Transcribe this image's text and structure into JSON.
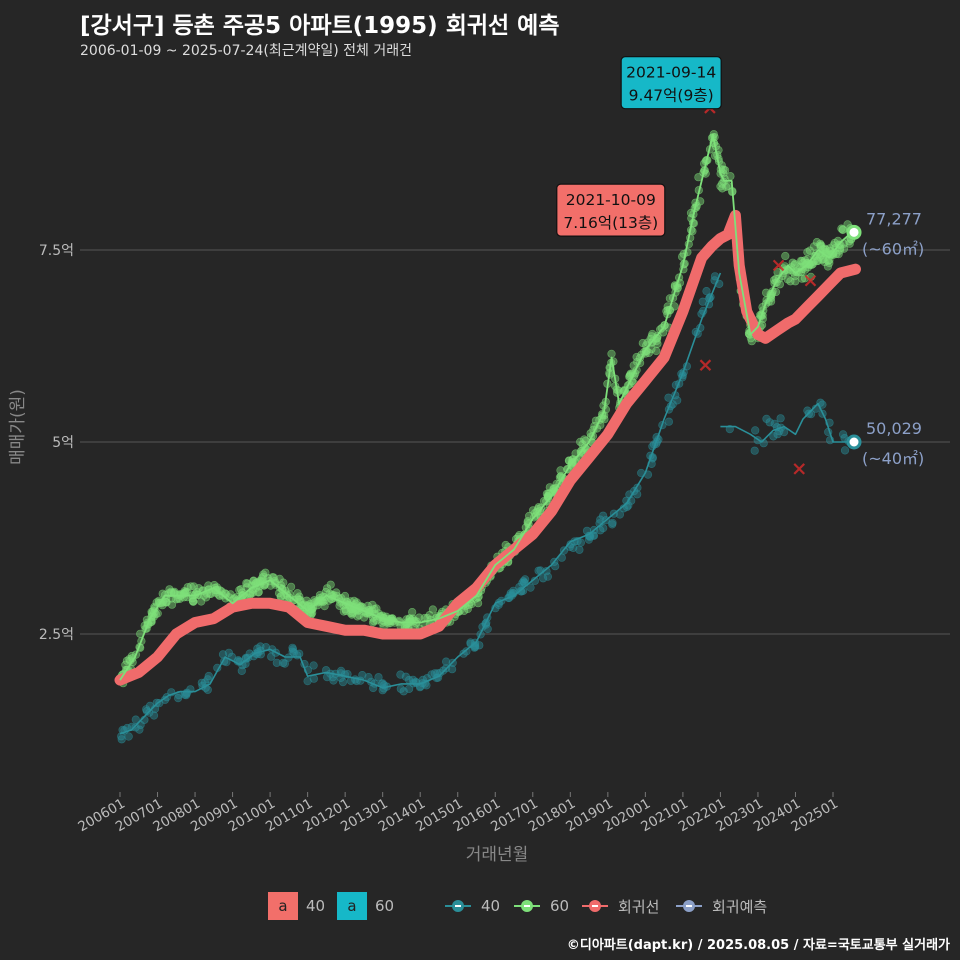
{
  "title": "[강서구] 등촌 주공5 아파트(1995) 회귀선 예측",
  "subtitle": "2006-01-09 ~ 2025-07-24(최근계약일) 전체 거래건",
  "caption": "©디아파트(dapt.kr) / 2025.08.05 / 자료=국토교통부 실거래가",
  "colors": {
    "background": "#262626",
    "grid": "#555555",
    "size40": "#2a8f99",
    "size60": "#7ee07a",
    "regression": "#f06b6b",
    "prediction": "#8ca0c8",
    "label_60": "#16b8c8",
    "label_reg": "#f26f6a",
    "cancel_x": "#d02a2a"
  },
  "legend": {
    "fill_items": [
      {
        "key": "a",
        "label": "40",
        "color": "#f26f6a"
      },
      {
        "key": "a",
        "label": "60",
        "color": "#16b8c8"
      }
    ],
    "line_items": [
      {
        "label": "40",
        "color": "#2a8f99"
      },
      {
        "label": "60",
        "color": "#7ee07a"
      },
      {
        "label": "회귀선",
        "color": "#f06b6b"
      },
      {
        "label": "회귀예측",
        "color": "#8ca0c8"
      }
    ]
  },
  "chart_data": {
    "type": "line",
    "xlabel": "거래년월",
    "ylabel": "매매가(원)",
    "x_unit": "year",
    "x_range": [
      2006.0,
      2025.6
    ],
    "ylim": [
      0.6,
      9.9
    ],
    "y_ticks": [
      {
        "value": 2.5,
        "label": "2.5억"
      },
      {
        "value": 5,
        "label": "5억"
      },
      {
        "value": 7.5,
        "label": "7.5억"
      }
    ],
    "x_ticks": [
      "200601",
      "200701",
      "200801",
      "200901",
      "201001",
      "201101",
      "201201",
      "201301",
      "201401",
      "201501",
      "201601",
      "201701",
      "201801",
      "201901",
      "202001",
      "202101",
      "202201",
      "202301",
      "202401",
      "202501"
    ],
    "grid": true,
    "series": [
      {
        "name": "60",
        "key": "size60",
        "x": [
          2006.0,
          2006.4,
          2006.8,
          2007.2,
          2007.6,
          2008.0,
          2008.5,
          2009.0,
          2009.5,
          2010.0,
          2010.5,
          2011.0,
          2011.5,
          2012.0,
          2012.5,
          2013.0,
          2013.5,
          2014.0,
          2014.5,
          2015.0,
          2015.5,
          2016.0,
          2016.5,
          2017.0,
          2017.5,
          2018.0,
          2018.5,
          2018.9,
          2019.1,
          2019.3,
          2019.6,
          2020.0,
          2020.5,
          2021.0,
          2021.3,
          2021.6,
          2021.8,
          2022.0,
          2022.1,
          2022.3,
          2022.5,
          2022.8,
          2023.0,
          2023.2,
          2023.5,
          2023.8,
          2024.0,
          2024.3,
          2024.6,
          2024.9,
          2025.2,
          2025.5
        ],
        "y": [
          1.9,
          2.2,
          2.7,
          3.0,
          3.0,
          3.0,
          3.1,
          2.9,
          3.1,
          3.2,
          3.0,
          2.8,
          3.0,
          2.9,
          2.8,
          2.7,
          2.65,
          2.65,
          2.7,
          2.8,
          3.0,
          3.4,
          3.6,
          4.0,
          4.3,
          4.7,
          5.0,
          5.4,
          6.1,
          5.5,
          5.8,
          6.2,
          6.5,
          7.3,
          8.0,
          8.6,
          9.0,
          8.5,
          8.4,
          8.4,
          7.2,
          6.4,
          6.5,
          6.8,
          7.1,
          7.3,
          7.2,
          7.3,
          7.5,
          7.4,
          7.6,
          7.73
        ]
      },
      {
        "name": "40",
        "key": "size40",
        "x": [
          2006.0,
          2006.3,
          2006.6,
          2007.0,
          2007.3,
          2007.6,
          2008.0,
          2008.4,
          2008.8,
          2009.2,
          2009.6,
          2010.0,
          2010.4,
          2010.8,
          2011.0,
          2011.5,
          2012.0,
          2012.5,
          2013.0,
          2013.5,
          2014.0,
          2014.5,
          2015.0,
          2015.5,
          2016.0,
          2016.5,
          2017.0,
          2017.5,
          2018.0,
          2018.5,
          2019.0,
          2019.5,
          2020.0,
          2020.5,
          2021.0,
          2021.5,
          2022.0
        ],
        "y": [
          1.2,
          1.25,
          1.4,
          1.6,
          1.7,
          1.75,
          1.75,
          1.85,
          2.2,
          2.1,
          2.25,
          2.3,
          2.2,
          2.2,
          1.95,
          2.0,
          1.95,
          1.9,
          1.8,
          1.85,
          1.85,
          1.95,
          2.2,
          2.4,
          2.9,
          3.0,
          3.2,
          3.4,
          3.7,
          3.8,
          4.0,
          4.2,
          4.6,
          5.3,
          5.9,
          6.6,
          7.2
        ]
      },
      {
        "name": "40",
        "key": "size40",
        "x": [
          2022.0,
          2022.4,
          2022.8,
          2023.1,
          2023.4,
          2023.7,
          2024.0,
          2024.2,
          2024.4,
          2024.6,
          2024.8,
          2025.0,
          2025.2,
          2025.5
        ],
        "y": [
          5.2,
          5.2,
          5.1,
          5.0,
          5.15,
          5.2,
          5.1,
          5.3,
          5.4,
          5.5,
          5.3,
          5.0,
          5.0,
          5.0
        ]
      },
      {
        "name": "회귀선",
        "key": "regression",
        "x": [
          2006.0,
          2006.5,
          2007.0,
          2007.5,
          2008.0,
          2008.5,
          2009.0,
          2009.5,
          2010.0,
          2010.5,
          2011.0,
          2011.5,
          2012.0,
          2012.5,
          2013.0,
          2013.5,
          2014.0,
          2014.5,
          2015.0,
          2015.5,
          2016.0,
          2016.5,
          2017.0,
          2017.5,
          2018.0,
          2018.5,
          2019.0,
          2019.5,
          2020.0,
          2020.5,
          2021.0,
          2021.5,
          2021.77,
          2022.0,
          2022.2,
          2022.4,
          2022.5,
          2022.7,
          2023.0,
          2023.2,
          2023.5,
          2023.8,
          2024.0,
          2024.3,
          2024.6,
          2024.9,
          2025.2,
          2025.6
        ],
        "y": [
          1.9,
          2.0,
          2.2,
          2.5,
          2.65,
          2.7,
          2.85,
          2.9,
          2.9,
          2.85,
          2.65,
          2.6,
          2.55,
          2.55,
          2.5,
          2.5,
          2.5,
          2.6,
          2.9,
          3.1,
          3.4,
          3.6,
          3.8,
          4.1,
          4.5,
          4.8,
          5.1,
          5.5,
          5.8,
          6.1,
          6.7,
          7.4,
          7.55,
          7.65,
          7.7,
          7.95,
          7.3,
          6.7,
          6.4,
          6.35,
          6.45,
          6.55,
          6.6,
          6.75,
          6.9,
          7.05,
          7.2,
          7.25
        ]
      },
      {
        "name": "회귀예측",
        "key": "prediction",
        "x": [],
        "y": []
      }
    ],
    "scatter": [
      {
        "name": "60",
        "key": "size60",
        "note": "individual transactions scattered around the 60 line"
      },
      {
        "name": "40",
        "key": "size40",
        "note": "individual transactions scattered around the 40 line"
      }
    ],
    "annotations": [
      {
        "x": 2021.7,
        "y": 9.47,
        "date": "2021-09-14",
        "text": "9.47억(9층)",
        "key": "label_60"
      },
      {
        "x": 2021.77,
        "y": 7.16,
        "date": "2021-10-09",
        "text": "7.16억(13층)",
        "key": "label_reg"
      }
    ],
    "end_labels": [
      {
        "x": 2025.56,
        "y": 7.73,
        "value": "77,277",
        "area": "(~60㎡)",
        "key": "size60"
      },
      {
        "x": 2025.56,
        "y": 5.0,
        "value": "50,029",
        "area": "(~40㎡)",
        "key": "size40"
      }
    ],
    "cancelled_marks": [
      {
        "x": 2021.72,
        "y": 9.35
      },
      {
        "x": 2021.6,
        "y": 6.0
      },
      {
        "x": 2023.55,
        "y": 7.3
      },
      {
        "x": 2024.4,
        "y": 7.1
      },
      {
        "x": 2024.1,
        "y": 4.65
      }
    ]
  }
}
